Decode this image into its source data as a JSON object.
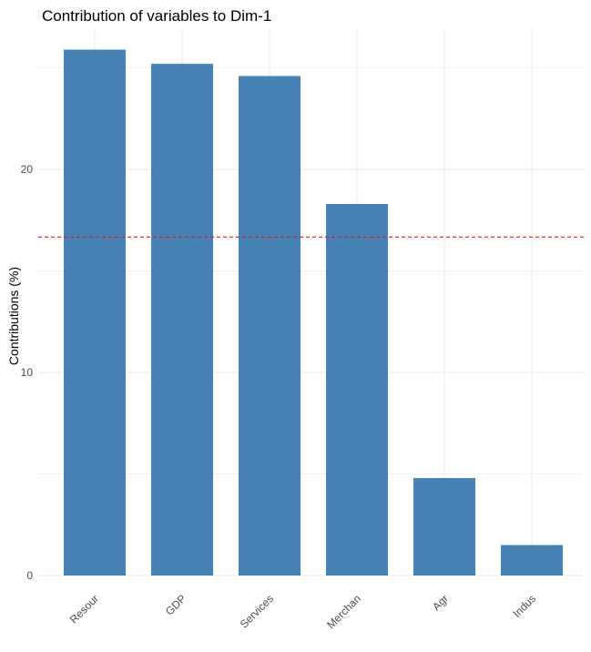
{
  "chart_data": {
    "type": "bar",
    "title": "Contribution of variables to Dim-1",
    "xlabel": "",
    "ylabel": "Contributions (%)",
    "categories": [
      "Resour",
      "GDP",
      "Services",
      "Merchan",
      "Agr",
      "Indus"
    ],
    "values": [
      25.9,
      25.2,
      24.6,
      18.3,
      4.8,
      1.5
    ],
    "ylim": [
      0,
      27
    ],
    "yticks": [
      0,
      10,
      20
    ],
    "reference_line": {
      "value": 16.67,
      "style": "dashed",
      "color": "#e41a1c"
    },
    "bar_color": "#4682b4",
    "grid": true,
    "legend": "none"
  },
  "colors": {
    "grid": "#ebebeb",
    "tick_text": "#4d4d4d"
  }
}
